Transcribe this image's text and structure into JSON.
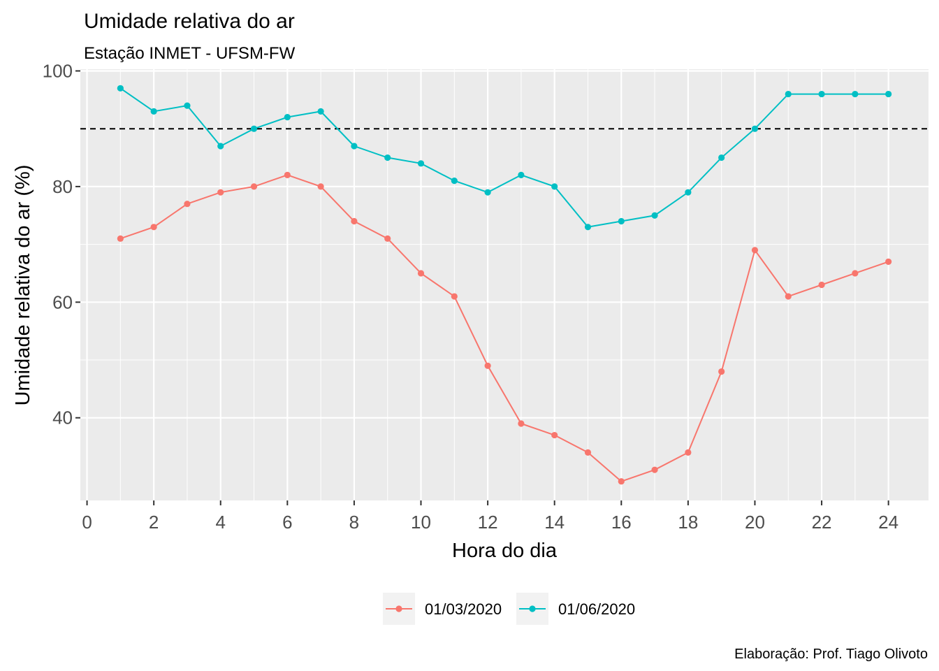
{
  "chart_data": {
    "type": "line",
    "title": "Umidade relativa do ar",
    "subtitle": "Estação INMET - UFSM-FW",
    "xlabel": "Hora do dia",
    "ylabel": "Umidade relativa do ar (%)",
    "caption": "Elaboração: Prof. Tiago Olivoto",
    "xlim": [
      -0.2,
      25.2
    ],
    "ylim": [
      25.7,
      100.3
    ],
    "x_ticks": [
      0,
      2,
      4,
      6,
      8,
      10,
      12,
      14,
      16,
      18,
      20,
      22,
      24
    ],
    "y_ticks": [
      40,
      60,
      80,
      100
    ],
    "grid": true,
    "legend_position": "bottom",
    "reference_line": {
      "y": 90,
      "style": "dashed",
      "color": "#000000"
    },
    "x": [
      1,
      2,
      3,
      4,
      5,
      6,
      7,
      8,
      9,
      10,
      11,
      12,
      13,
      14,
      15,
      16,
      17,
      18,
      19,
      20,
      21,
      22,
      23,
      24
    ],
    "series": [
      {
        "name": "01/03/2020",
        "color": "#F8766D",
        "values": [
          71,
          73,
          77,
          79,
          80,
          82,
          80,
          74,
          71,
          65,
          61,
          49,
          39,
          37,
          34,
          29,
          31,
          34,
          48,
          69,
          61,
          63,
          65,
          67
        ]
      },
      {
        "name": "01/06/2020",
        "color": "#00BFC4",
        "values": [
          97,
          93,
          94,
          87,
          90,
          92,
          93,
          87,
          85,
          84,
          81,
          79,
          82,
          80,
          73,
          74,
          75,
          79,
          85,
          90,
          96,
          96,
          96,
          96
        ]
      }
    ]
  }
}
